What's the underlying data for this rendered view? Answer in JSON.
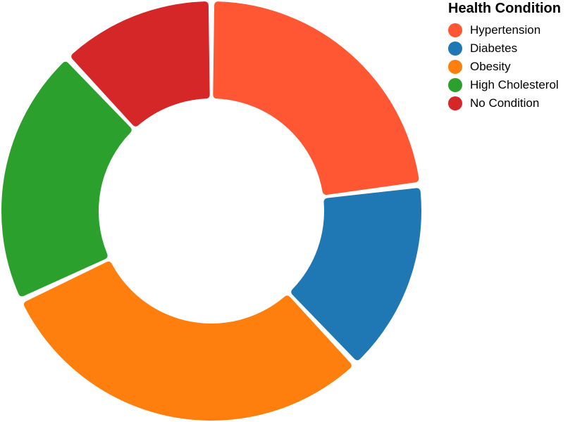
{
  "chart_data": {
    "type": "pie",
    "variant": "donut",
    "legend_title": "Health Condition",
    "legend_position": "top-right",
    "categories": [
      "Hypertension",
      "Diabetes",
      "Obesity",
      "High Cholesterol",
      "No Condition"
    ],
    "values": [
      23,
      15,
      30,
      20,
      12
    ],
    "colors": [
      "#FF5733",
      "#1F77B4",
      "#FF7F0E",
      "#2CA02C",
      "#D62728"
    ]
  }
}
